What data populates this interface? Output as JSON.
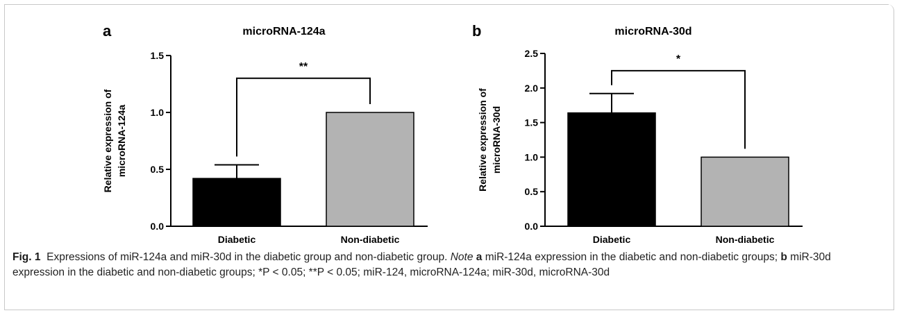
{
  "panels": [
    {
      "letter": "a",
      "chart_data": {
        "type": "bar",
        "title": "microRNA-124a",
        "ylabel": "Relative expression of microRNA-124a",
        "ylabel_lines": [
          "Relative expression of",
          "microRNA-124a"
        ],
        "categories": [
          "Diabetic",
          "Non-diabetic"
        ],
        "values": [
          0.42,
          1.0
        ],
        "errors": [
          0.12,
          0.0
        ],
        "bar_colors": [
          "#000000",
          "#b3b3b3"
        ],
        "ylim": [
          0,
          1.5
        ],
        "yticks": [
          0.0,
          0.5,
          1.0,
          1.5
        ],
        "ytick_labels": [
          "0.0",
          "0.5",
          "1.0",
          "1.5"
        ],
        "grid": false,
        "significance": {
          "label": "**",
          "level": 1.3
        }
      }
    },
    {
      "letter": "b",
      "chart_data": {
        "type": "bar",
        "title": "microRNA-30d",
        "ylabel": "Relative expression of microRNA-30d",
        "ylabel_lines": [
          "Relative expression of",
          "microRNA-30d"
        ],
        "categories": [
          "Diabetic",
          "Non-diabetic"
        ],
        "values": [
          1.64,
          1.0
        ],
        "errors": [
          0.28,
          0.0
        ],
        "bar_colors": [
          "#000000",
          "#b3b3b3"
        ],
        "ylim": [
          0,
          2.5
        ],
        "yticks": [
          0.0,
          0.5,
          1.0,
          1.5,
          2.0,
          2.5
        ],
        "ytick_labels": [
          "0.0",
          "0.5",
          "1.0",
          "1.5",
          "2.0",
          "2.5"
        ],
        "grid": false,
        "significance": {
          "label": "*",
          "level": 2.25
        }
      }
    }
  ],
  "caption": {
    "fig_label": "Fig. 1",
    "text_main": "Expressions of miR-124a and miR-30d in the diabetic group and non-diabetic group.",
    "note_label": "Note",
    "a_label": "a",
    "a_text": "miR-124a expression in the diabetic and non-diabetic groups;",
    "b_label": "b",
    "b_text": "miR-30d expression in the diabetic and non-diabetic groups; *P < 0.05; **P < 0.05; miR-124, microRNA-124a; miR-30d, microRNA-30d"
  }
}
